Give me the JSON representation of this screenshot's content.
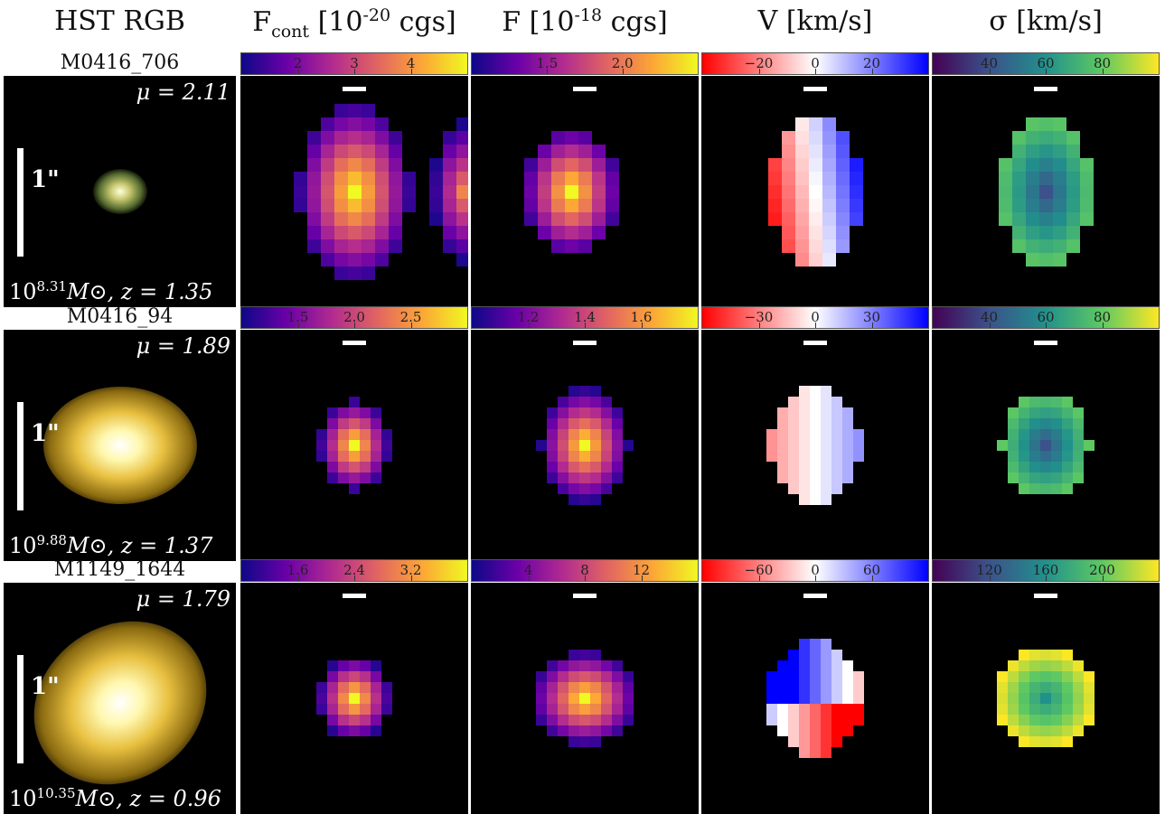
{
  "columns": [
    {
      "label_main": "HST RGB",
      "label_sub": "",
      "label_rest": "",
      "label_sup": "",
      "label_end": ""
    },
    {
      "label_main": "F",
      "label_sub": "cont",
      "label_rest": " [10",
      "label_sup": "-20",
      "label_end": " cgs]"
    },
    {
      "label_main": "F [10",
      "label_sub": "",
      "label_rest": "",
      "label_sup": "-18",
      "label_end": " cgs]"
    },
    {
      "label_main": "V [km/s]",
      "label_sub": "",
      "label_rest": "",
      "label_sup": "",
      "label_end": ""
    },
    {
      "label_main": "σ [km/s]",
      "label_sub": "",
      "label_rest": "",
      "label_sup": "",
      "label_end": ""
    }
  ],
  "rows": [
    {
      "name": "M0416_706",
      "mu": "μ = 2.11",
      "mass_base": "10",
      "mass_exp": "8.31",
      "mass_rest": "M⊙,  z = 1.35",
      "scale_label": "1\"",
      "colorbars": [
        {
          "ticks": [
            "2",
            "3",
            "4"
          ]
        },
        {
          "ticks": [
            "1.5",
            "2.0"
          ]
        },
        {
          "ticks": [
            "−20",
            "0",
            "20"
          ]
        },
        {
          "ticks": [
            "40",
            "60",
            "80"
          ]
        }
      ]
    },
    {
      "name": "M0416_94",
      "mu": "μ = 1.89",
      "mass_base": "10",
      "mass_exp": "9.88",
      "mass_rest": "M⊙,  z = 1.37",
      "scale_label": "1\"",
      "colorbars": [
        {
          "ticks": [
            "1.5",
            "2.0",
            "2.5"
          ]
        },
        {
          "ticks": [
            "1.2",
            "1.4",
            "1.6"
          ]
        },
        {
          "ticks": [
            "−30",
            "0",
            "30"
          ]
        },
        {
          "ticks": [
            "40",
            "60",
            "80"
          ]
        }
      ]
    },
    {
      "name": "M1149_1644",
      "mu": "μ = 1.79",
      "mass_base": "10",
      "mass_exp": "10.35",
      "mass_rest": "M⊙,  z = 0.96",
      "scale_label": "1\"",
      "colorbars": [
        {
          "ticks": [
            "1.6",
            "2.4",
            "3.2"
          ]
        },
        {
          "ticks": [
            "4",
            "8",
            "12"
          ]
        },
        {
          "ticks": [
            "−60",
            "0",
            "60"
          ]
        },
        {
          "ticks": [
            "120",
            "160",
            "200"
          ]
        }
      ]
    }
  ],
  "colors": {
    "plasma": [
      "#0d0887",
      "#6a00a8",
      "#b12a90",
      "#e16462",
      "#fca636",
      "#f0f921"
    ],
    "bwr": [
      "#ff0000",
      "#ffffff",
      "#0000ff"
    ],
    "viridis": [
      "#440154",
      "#3b528b",
      "#21918c",
      "#5ec962",
      "#fde725"
    ]
  }
}
